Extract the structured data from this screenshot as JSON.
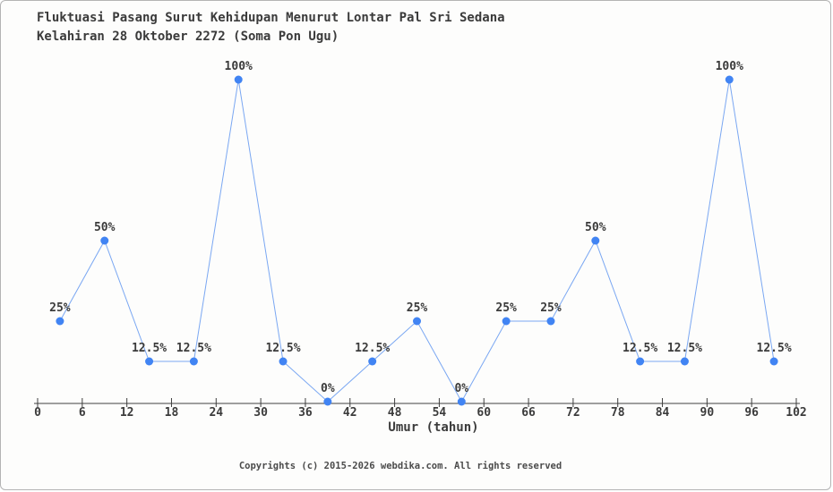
{
  "header": {
    "title_line1": "Fluktuasi Pasang Surut Kehidupan Menurut Lontar Pal Sri Sedana",
    "title_line2": "Kelahiran 28 Oktober 2272 (Soma Pon Ugu)"
  },
  "chart_data": {
    "type": "line",
    "title": "Fluktuasi Pasang Surut Kehidupan Menurut Lontar Pal Sri Sedana — Kelahiran 28 Oktober 2272 (Soma Pon Ugu)",
    "xlabel": "Umur (tahun)",
    "ylabel": "",
    "x": [
      3,
      9,
      15,
      21,
      27,
      33,
      39,
      45,
      51,
      57,
      63,
      69,
      75,
      81,
      87,
      93,
      99
    ],
    "values": [
      25,
      50,
      12.5,
      12.5,
      100,
      12.5,
      0,
      12.5,
      25,
      0,
      25,
      25,
      50,
      12.5,
      12.5,
      100,
      12.5
    ],
    "point_labels": [
      "25%",
      "50%",
      "12.5%",
      "12.5%",
      "100%",
      "12.5%",
      "0%",
      "12.5%",
      "25%",
      "0%",
      "25%",
      "25%",
      "50%",
      "12.5%",
      "12.5%",
      "100%",
      "12.5%"
    ],
    "x_ticks": [
      0,
      6,
      12,
      18,
      24,
      30,
      36,
      42,
      48,
      54,
      60,
      66,
      72,
      78,
      84,
      90,
      96,
      102
    ],
    "xlim": [
      0,
      102
    ],
    "ylim": [
      0,
      100
    ],
    "grid": false,
    "legend": "none",
    "colors": {
      "line": "#7aa7f2",
      "marker": "#4184f3",
      "axis": "#3f3f3f",
      "text": "#3b3b3b"
    }
  },
  "footer": {
    "copyright": "Copyrights (c) 2015-2026 webdika.com. All rights reserved"
  }
}
